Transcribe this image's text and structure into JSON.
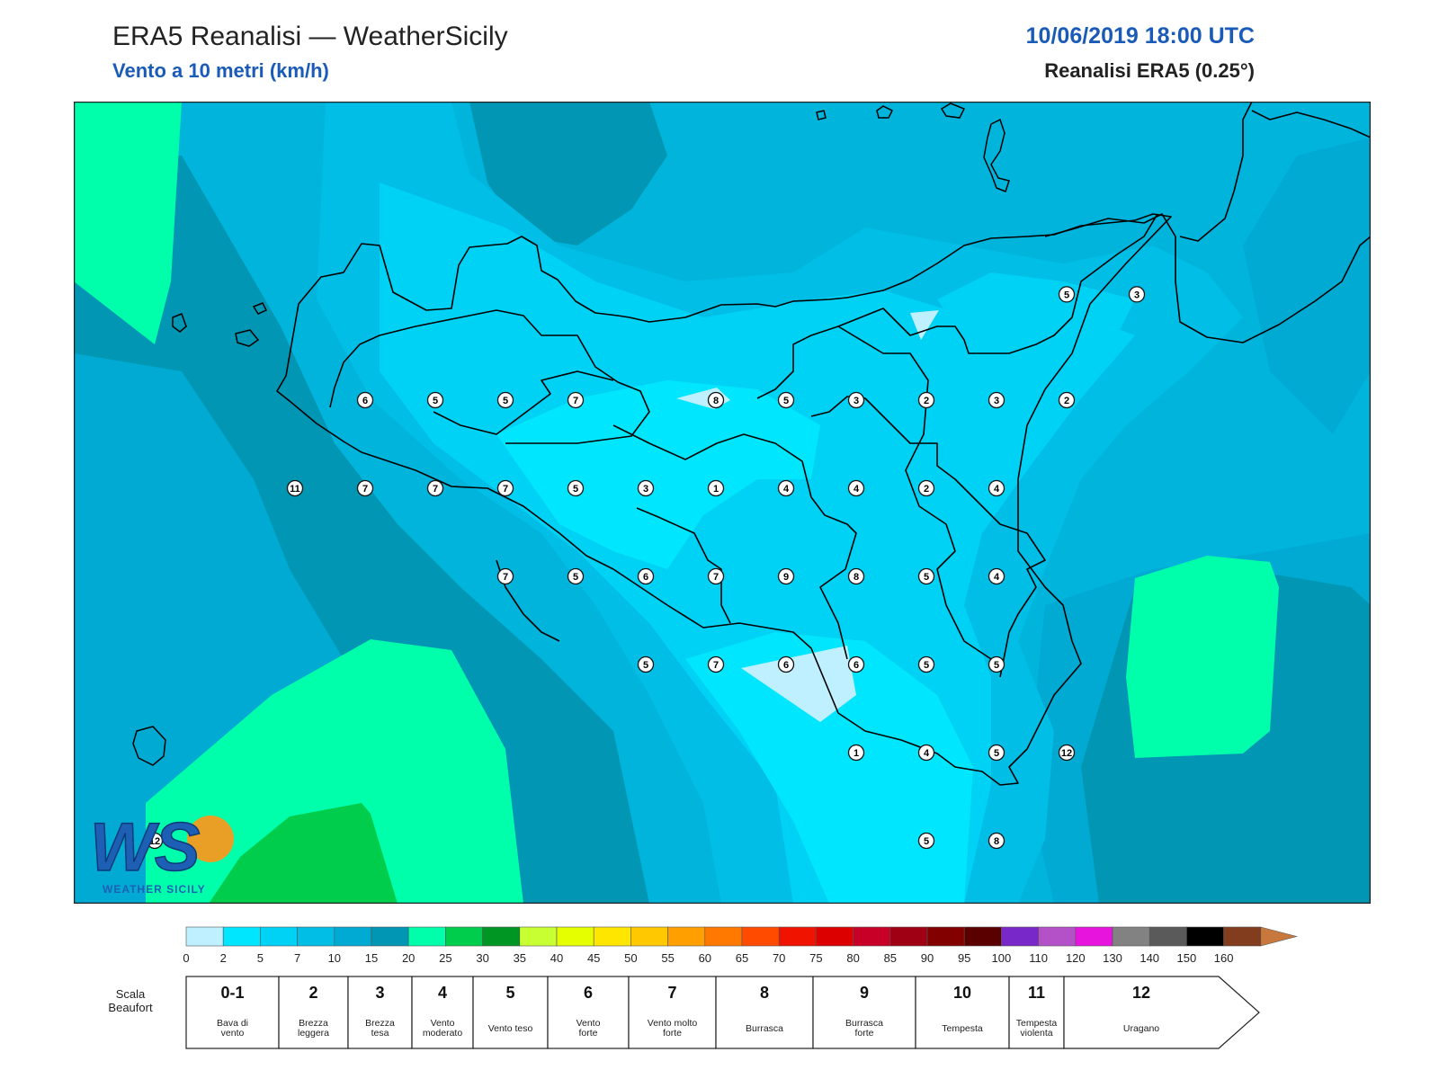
{
  "header": {
    "title": "ERA5 Reanalisi — WeatherSicily",
    "subtitle": "Vento a 10 metri (km/h)",
    "datetime": "10/06/2019 18:00 UTC",
    "dataset": "Reanalisi ERA5 (0.25°)"
  },
  "logo": {
    "letters": "WS",
    "text": "WEATHER SICILY"
  },
  "colors": {
    "land_outline": "#000000",
    "background": "#00b4dc",
    "accent_title": "#1a5bb8"
  },
  "stations": [
    {
      "lon": 12.5,
      "lat": 38.0,
      "beaufort": "6"
    },
    {
      "lon": 13.0,
      "lat": 38.0,
      "beaufort": "5"
    },
    {
      "lon": 13.5,
      "lat": 38.0,
      "beaufort": "5"
    },
    {
      "lon": 14.0,
      "lat": 38.0,
      "beaufort": "7"
    },
    {
      "lon": 15.0,
      "lat": 38.0,
      "beaufort": "8"
    },
    {
      "lon": 15.5,
      "lat": 38.0,
      "beaufort": "5"
    },
    {
      "lon": 16.0,
      "lat": 38.0,
      "beaufort": "3"
    },
    {
      "lon": 16.5,
      "lat": 38.0,
      "beaufort": "2"
    },
    {
      "lon": 17.0,
      "lat": 38.0,
      "beaufort": "3"
    },
    {
      "lon": 17.5,
      "lat": 38.0,
      "beaufort": "2"
    },
    {
      "lon": 17.5,
      "lat": 38.6,
      "beaufort": "5"
    },
    {
      "lon": 18.0,
      "lat": 38.6,
      "beaufort": "3"
    },
    {
      "lon": 12.0,
      "lat": 37.5,
      "beaufort": "11"
    },
    {
      "lon": 12.5,
      "lat": 37.5,
      "beaufort": "7"
    },
    {
      "lon": 13.0,
      "lat": 37.5,
      "beaufort": "7"
    },
    {
      "lon": 13.5,
      "lat": 37.5,
      "beaufort": "7"
    },
    {
      "lon": 14.0,
      "lat": 37.5,
      "beaufort": "5"
    },
    {
      "lon": 14.5,
      "lat": 37.5,
      "beaufort": "3"
    },
    {
      "lon": 15.0,
      "lat": 37.5,
      "beaufort": "1"
    },
    {
      "lon": 15.5,
      "lat": 37.5,
      "beaufort": "4"
    },
    {
      "lon": 16.0,
      "lat": 37.5,
      "beaufort": "4"
    },
    {
      "lon": 16.5,
      "lat": 37.5,
      "beaufort": "2"
    },
    {
      "lon": 17.0,
      "lat": 37.5,
      "beaufort": "4"
    },
    {
      "lon": 13.5,
      "lat": 37.0,
      "beaufort": "7"
    },
    {
      "lon": 14.0,
      "lat": 37.0,
      "beaufort": "5"
    },
    {
      "lon": 14.5,
      "lat": 37.0,
      "beaufort": "6"
    },
    {
      "lon": 15.0,
      "lat": 37.0,
      "beaufort": "7"
    },
    {
      "lon": 15.5,
      "lat": 37.0,
      "beaufort": "9"
    },
    {
      "lon": 16.0,
      "lat": 37.0,
      "beaufort": "8"
    },
    {
      "lon": 16.5,
      "lat": 37.0,
      "beaufort": "5"
    },
    {
      "lon": 17.0,
      "lat": 37.0,
      "beaufort": "4"
    },
    {
      "lon": 14.5,
      "lat": 36.5,
      "beaufort": "5"
    },
    {
      "lon": 15.0,
      "lat": 36.5,
      "beaufort": "7"
    },
    {
      "lon": 15.5,
      "lat": 36.5,
      "beaufort": "6"
    },
    {
      "lon": 16.0,
      "lat": 36.5,
      "beaufort": "6"
    },
    {
      "lon": 16.5,
      "lat": 36.5,
      "beaufort": "5"
    },
    {
      "lon": 17.0,
      "lat": 36.5,
      "beaufort": "5"
    },
    {
      "lon": 16.0,
      "lat": 36.0,
      "beaufort": "1"
    },
    {
      "lon": 16.5,
      "lat": 36.0,
      "beaufort": "4"
    },
    {
      "lon": 17.0,
      "lat": 36.0,
      "beaufort": "5"
    },
    {
      "lon": 17.5,
      "lat": 36.0,
      "beaufort": "12"
    },
    {
      "lon": 16.5,
      "lat": 35.5,
      "beaufort": "5"
    },
    {
      "lon": 17.0,
      "lat": 35.5,
      "beaufort": "8"
    },
    {
      "lon": 11.0,
      "lat": 35.5,
      "beaufort": "12"
    }
  ],
  "colorbar": {
    "ticks": [
      "0",
      "2",
      "5",
      "7",
      "10",
      "15",
      "20",
      "25",
      "30",
      "35",
      "40",
      "45",
      "50",
      "55",
      "60",
      "65",
      "70",
      "75",
      "80",
      "85",
      "90",
      "95",
      "100",
      "110",
      "120",
      "130",
      "140",
      "150",
      "160"
    ],
    "colors": [
      "#bef0ff",
      "#00e6ff",
      "#00d2f5",
      "#00bee6",
      "#00aad2",
      "#0096b4",
      "#00ffaa",
      "#00cd4b",
      "#009623",
      "#c8ff32",
      "#e6ff00",
      "#ffe600",
      "#ffc800",
      "#ffa000",
      "#ff7800",
      "#ff4b00",
      "#f01400",
      "#dc0000",
      "#c80028",
      "#a00014",
      "#820000",
      "#5a0000",
      "#7828c8",
      "#b450c8",
      "#e614dc",
      "#828282",
      "#5a5a5a",
      "#000000",
      "#823c1e",
      "#c8783c"
    ]
  },
  "beaufort": {
    "label_line1": "Scala",
    "label_line2": "Beaufort",
    "classes": [
      {
        "num": "0-1",
        "desc": [
          "Bava di",
          "vento"
        ]
      },
      {
        "num": "2",
        "desc": [
          "Brezza",
          "leggera"
        ]
      },
      {
        "num": "3",
        "desc": [
          "Brezza",
          "tesa"
        ]
      },
      {
        "num": "4",
        "desc": [
          "Vento",
          "moderato"
        ]
      },
      {
        "num": "5",
        "desc": [
          "Vento teso"
        ]
      },
      {
        "num": "6",
        "desc": [
          "Vento",
          "forte"
        ]
      },
      {
        "num": "7",
        "desc": [
          "Vento molto",
          "forte"
        ]
      },
      {
        "num": "8",
        "desc": [
          "Burrasca"
        ]
      },
      {
        "num": "9",
        "desc": [
          "Burrasca",
          "forte"
        ]
      },
      {
        "num": "10",
        "desc": [
          "Tempesta"
        ]
      },
      {
        "num": "11",
        "desc": [
          "Tempesta",
          "violenta"
        ]
      },
      {
        "num": "12",
        "desc": [
          "Uragano"
        ]
      }
    ]
  }
}
